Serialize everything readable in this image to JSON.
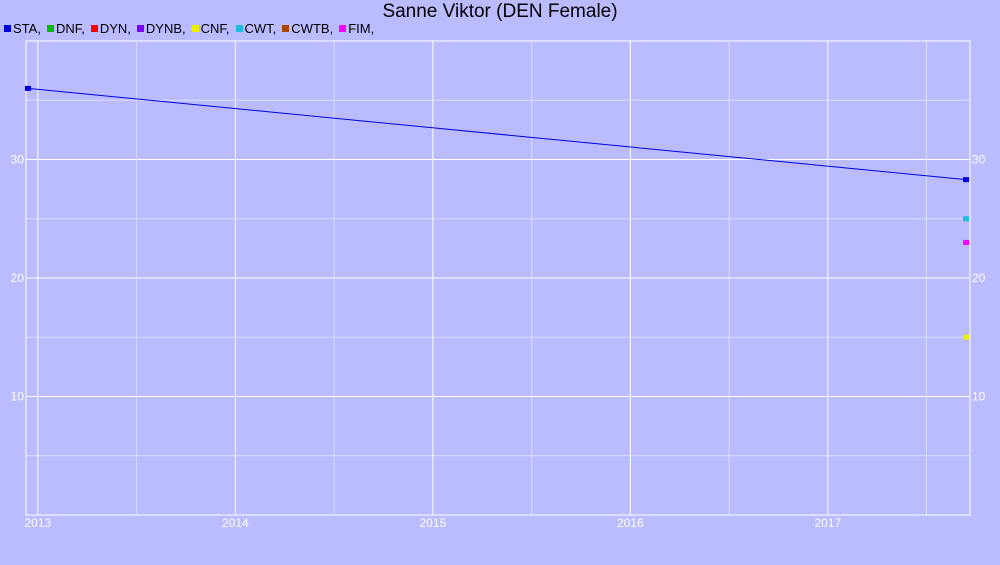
{
  "chart_data": {
    "type": "line",
    "title": "Sanne Viktor (DEN Female)",
    "xlabel": "",
    "ylabel": "",
    "xlim": [
      2012.94,
      2017.72
    ],
    "ylim": [
      0,
      40
    ],
    "x_ticks": [
      2013,
      2014,
      2015,
      2016,
      2017
    ],
    "y_ticks": [
      10,
      20,
      30
    ],
    "grid": true,
    "legend_position": "top-left",
    "series": [
      {
        "name": "STA",
        "color": "#0000dd",
        "points": [
          [
            2012.95,
            36
          ],
          [
            2017.7,
            28.3
          ]
        ]
      },
      {
        "name": "DNF",
        "color": "#00bb00",
        "points": []
      },
      {
        "name": "DYN",
        "color": "#ff0000",
        "points": []
      },
      {
        "name": "DYNB",
        "color": "#8000ff",
        "points": []
      },
      {
        "name": "CNF",
        "color": "#eeee00",
        "points": [
          [
            2017.7,
            15
          ]
        ]
      },
      {
        "name": "CWT",
        "color": "#22bbdd",
        "points": [
          [
            2017.7,
            25
          ]
        ]
      },
      {
        "name": "CWTB",
        "color": "#aa4400",
        "points": []
      },
      {
        "name": "FIM",
        "color": "#ff00ff",
        "points": [
          [
            2017.7,
            23
          ]
        ]
      }
    ]
  }
}
